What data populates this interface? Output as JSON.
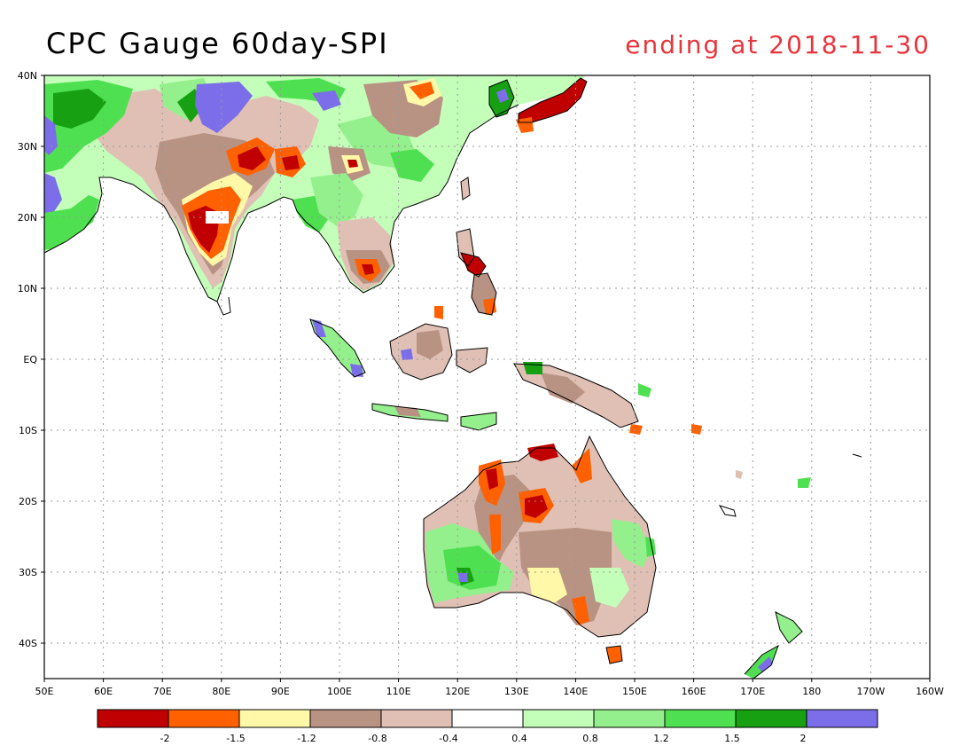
{
  "title": "CPC Gauge 60day-SPI",
  "subtitle": "ending at 2018-11-30",
  "map": {
    "lat_range": [
      -45,
      40
    ],
    "lon_range": [
      50,
      200
    ],
    "lat_ticks": [
      {
        "value": 40,
        "label": "40N"
      },
      {
        "value": 30,
        "label": "30N"
      },
      {
        "value": 20,
        "label": "20N"
      },
      {
        "value": 10,
        "label": "10N"
      },
      {
        "value": 0,
        "label": "EQ"
      },
      {
        "value": -10,
        "label": "10S"
      },
      {
        "value": -20,
        "label": "20S"
      },
      {
        "value": -30,
        "label": "30S"
      },
      {
        "value": -40,
        "label": "40S"
      }
    ],
    "lon_ticks": [
      {
        "value": 50,
        "label": "50E"
      },
      {
        "value": 60,
        "label": "60E"
      },
      {
        "value": 70,
        "label": "70E"
      },
      {
        "value": 80,
        "label": "80E"
      },
      {
        "value": 90,
        "label": "90E"
      },
      {
        "value": 100,
        "label": "100E"
      },
      {
        "value": 110,
        "label": "110E"
      },
      {
        "value": 120,
        "label": "120E"
      },
      {
        "value": 130,
        "label": "130E"
      },
      {
        "value": 140,
        "label": "140E"
      },
      {
        "value": 150,
        "label": "150E"
      },
      {
        "value": 160,
        "label": "160E"
      },
      {
        "value": 170,
        "label": "170E"
      },
      {
        "value": 180,
        "label": "180"
      },
      {
        "value": 190,
        "label": "170W"
      },
      {
        "value": 200,
        "label": "160W"
      }
    ],
    "grid": true
  },
  "legend": {
    "colors": [
      "#c00000",
      "#ff6000",
      "#fff8a8",
      "#b89282",
      "#e0c0b4",
      "#ffffff",
      "#c4ffba",
      "#94f08c",
      "#4ee050",
      "#16a012",
      "#7c6ee8"
    ],
    "labels": [
      "-2",
      "-1.5",
      "-1.2",
      "-0.8",
      "-0.4",
      "0.4",
      "0.8",
      "1.2",
      "1.5",
      "2"
    ]
  }
}
